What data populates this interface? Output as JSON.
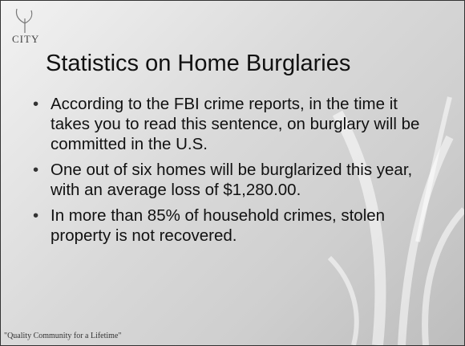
{
  "logo": "CITY",
  "title": "Statistics on Home Burglaries",
  "bullets": [
    "According to the FBI crime reports, in the time it takes you to read this sentence, on burglary will be committed in the U.S.",
    "One out of six homes will be burglarized this year, with an average loss of $1,280.00.",
    "In more than 85% of household crimes, stolen property is not recovered."
  ],
  "footer": "\"Quality Community for a Lifetime\""
}
